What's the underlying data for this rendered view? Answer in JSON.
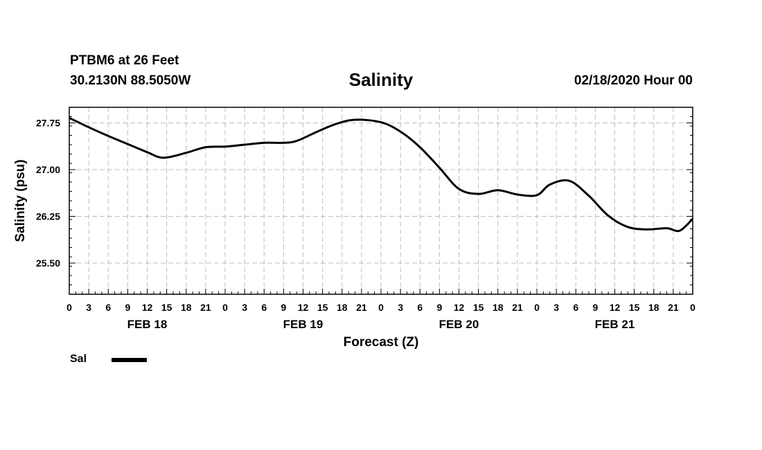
{
  "header": {
    "station": "PTBM6 at 26 Feet",
    "coords": "30.2130N 88.5050W",
    "run": "02/18/2020 Hour 00"
  },
  "legend": {
    "label": "Sal"
  },
  "chart_data": {
    "type": "line",
    "title": "Salinity",
    "xlabel": "Forecast (Z)",
    "ylabel": "Salinity (psu)",
    "xlim": [
      0,
      96
    ],
    "ylim": [
      25.0,
      28.0
    ],
    "yticks": [
      25.5,
      26.25,
      27.0,
      27.75
    ],
    "ytick_labels": [
      "25.50",
      "26.25",
      "27.00",
      "27.75"
    ],
    "xticks": [
      0,
      3,
      6,
      9,
      12,
      15,
      18,
      21,
      24,
      27,
      30,
      33,
      36,
      39,
      42,
      45,
      48,
      51,
      54,
      57,
      60,
      63,
      66,
      69,
      72,
      75,
      78,
      81,
      84,
      87,
      90,
      93,
      96
    ],
    "xtick_labels": [
      "0",
      "3",
      "6",
      "9",
      "12",
      "15",
      "18",
      "21",
      "0",
      "3",
      "6",
      "9",
      "12",
      "15",
      "18",
      "21",
      "0",
      "3",
      "6",
      "9",
      "12",
      "15",
      "18",
      "21",
      "0",
      "3",
      "6",
      "9",
      "12",
      "15",
      "18",
      "21",
      "0"
    ],
    "date_labels": [
      {
        "hour": 12,
        "label": "FEB 18"
      },
      {
        "hour": 36,
        "label": "FEB 19"
      },
      {
        "hour": 60,
        "label": "FEB 20"
      },
      {
        "hour": 84,
        "label": "FEB 21"
      }
    ],
    "grid": true,
    "series": [
      {
        "name": "Sal",
        "x": [
          0,
          3,
          6,
          9,
          12,
          14.5,
          18,
          21,
          24,
          27,
          30,
          33,
          35,
          38,
          41,
          44,
          48,
          51,
          54,
          57,
          60,
          63,
          66,
          69,
          72,
          74,
          77,
          80,
          83,
          86,
          89,
          92,
          94,
          96
        ],
        "y": [
          27.83,
          27.68,
          27.54,
          27.41,
          27.28,
          27.19,
          27.27,
          27.36,
          27.37,
          27.4,
          27.43,
          27.43,
          27.46,
          27.6,
          27.73,
          27.8,
          27.76,
          27.61,
          27.36,
          27.03,
          26.69,
          26.61,
          26.67,
          26.6,
          26.59,
          26.76,
          26.82,
          26.58,
          26.26,
          26.08,
          26.04,
          26.06,
          26.02,
          26.21
        ]
      }
    ]
  }
}
